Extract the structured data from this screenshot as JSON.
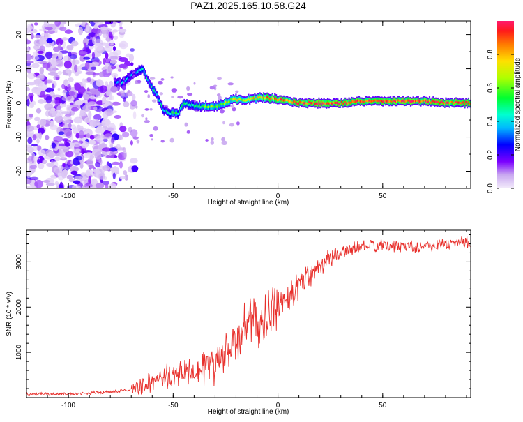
{
  "title": "PAZ1.2025.165.10.58.G24",
  "colors": {
    "snr_line": "#e8302c",
    "spec_min": "#c9a8f0",
    "spec_max": "#ff1a6e"
  },
  "chart_data": [
    {
      "type": "heatmap",
      "xlabel": "Height of straight line (km)",
      "ylabel": "Frequency (Hz)",
      "xlim": [
        -120,
        92
      ],
      "ylim": [
        -25,
        24
      ],
      "xticks": [
        -100,
        -50,
        0,
        50
      ],
      "yticks": [
        -20,
        -10,
        0,
        10,
        20
      ],
      "colorbar": {
        "label": "Normalized spectral amplitude",
        "range": [
          0,
          1
        ],
        "ticks": [
          "0.0",
          "0.2",
          "0.4",
          "0.6",
          "0.8"
        ],
        "tick_values": [
          0,
          0.2,
          0.4,
          0.6,
          0.8
        ]
      },
      "ridge": {
        "description_free": true,
        "x": [
          -75,
          -70,
          -65,
          -62,
          -58,
          -55,
          -52,
          -48,
          -45,
          -40,
          -35,
          -30,
          -25,
          -22,
          -20,
          -15,
          -10,
          -5,
          0,
          10,
          20,
          30,
          40,
          50,
          60,
          70,
          80,
          90
        ],
        "y": [
          6,
          8,
          10,
          6,
          2,
          -2,
          -3,
          -3,
          0,
          -1,
          -1,
          -1,
          0,
          1,
          1,
          1,
          1.5,
          1.5,
          1,
          0,
          0,
          0,
          0.5,
          0.5,
          0.5,
          0.5,
          0,
          0
        ]
      }
    },
    {
      "type": "line",
      "xlabel": "Height of straight line (km)",
      "ylabel": "SNR (10 * v/v)",
      "xlim": [
        -120,
        92
      ],
      "ylim": [
        0,
        3700
      ],
      "xticks": [
        -100,
        -50,
        0,
        50
      ],
      "yticks": [
        1000,
        2000,
        3000
      ],
      "trend": {
        "x": [
          -120,
          -100,
          -90,
          -80,
          -70,
          -65,
          -60,
          -50,
          -40,
          -30,
          -20,
          -15,
          -10,
          -5,
          0,
          10,
          20,
          30,
          40,
          50,
          60,
          70,
          80,
          92
        ],
        "y": [
          80,
          80,
          100,
          120,
          180,
          250,
          350,
          500,
          650,
          700,
          1200,
          1700,
          1600,
          1750,
          2000,
          2500,
          2950,
          3200,
          3350,
          3350,
          3350,
          3350,
          3400,
          3450
        ]
      }
    }
  ]
}
